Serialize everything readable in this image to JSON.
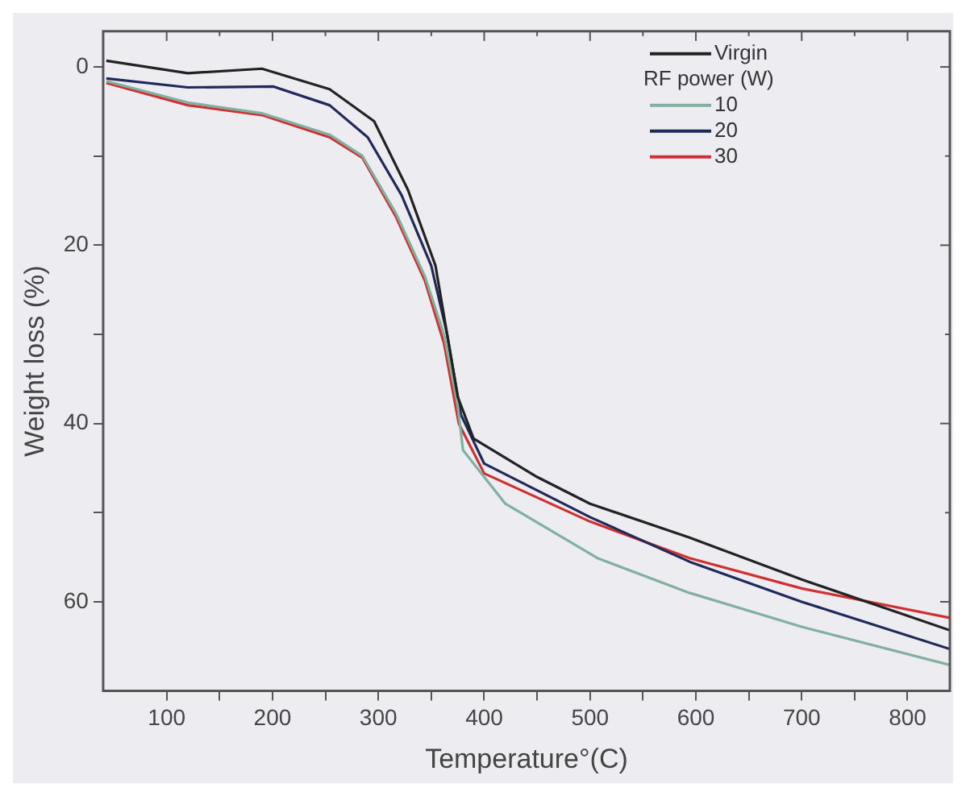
{
  "chart_data": {
    "type": "line",
    "xlabel": "Temperature°(C)",
    "ylabel": "Weight loss (%)",
    "legend_title": "RF power (W)",
    "legend": "top right",
    "grid": false,
    "marker": "none",
    "line_style": "solid",
    "xlim": [
      40,
      840
    ],
    "ylim": [
      70,
      -4
    ],
    "xticks": [
      100,
      {
        "value": 150,
        "label": null
      },
      200,
      {
        "value": 250,
        "label": null
      },
      300,
      {
        "value": 350,
        "label": null
      },
      400,
      {
        "value": 450,
        "label": null
      },
      500,
      {
        "value": 550,
        "label": null
      },
      600,
      {
        "value": 650,
        "label": null
      },
      700,
      {
        "value": 750,
        "label": null
      },
      800
    ],
    "yticks": [
      0,
      {
        "value": 10,
        "label": null
      },
      20,
      {
        "value": 30,
        "label": null
      },
      40,
      {
        "value": 50,
        "label": null
      },
      60
    ],
    "series": [
      {
        "name": "Virgin",
        "color": "#222222",
        "x": [
          43,
          120,
          190,
          254,
          296,
          328,
          354,
          365,
          375,
          390,
          450,
          500,
          594,
          700,
          840
        ],
        "values": [
          -0.7,
          0.7,
          0.2,
          2.5,
          6.1,
          13.8,
          22.3,
          30,
          37,
          41.7,
          46,
          49,
          52.8,
          57.5,
          63.2
        ]
      },
      {
        "name": "10",
        "color": "#7fb0a0",
        "x": [
          43,
          120,
          190,
          254,
          285,
          317,
          344,
          362,
          375,
          380,
          420,
          507,
          594,
          700,
          840
        ],
        "values": [
          1.6,
          4,
          5.2,
          7.6,
          10,
          16.5,
          23.5,
          30,
          38,
          43,
          49,
          55.1,
          59,
          62.8,
          67.1
        ]
      },
      {
        "name": "20",
        "color": "#1f2a5a",
        "x": [
          43,
          120,
          201,
          254,
          290,
          322,
          350,
          365,
          378,
          400,
          500,
          594,
          700,
          840
        ],
        "values": [
          1.3,
          2.3,
          2.2,
          4.3,
          7.9,
          14.4,
          22.3,
          30,
          39,
          44.5,
          50.5,
          55.5,
          60,
          65.3
        ]
      },
      {
        "name": "30",
        "color": "#d03030",
        "x": [
          43,
          120,
          190,
          254,
          285,
          317,
          344,
          362,
          376,
          400,
          500,
          594,
          700,
          840
        ],
        "values": [
          1.8,
          4.3,
          5.4,
          7.9,
          10.2,
          16.9,
          24,
          31,
          40,
          45.6,
          51,
          55.1,
          58.5,
          61.8
        ]
      }
    ]
  }
}
